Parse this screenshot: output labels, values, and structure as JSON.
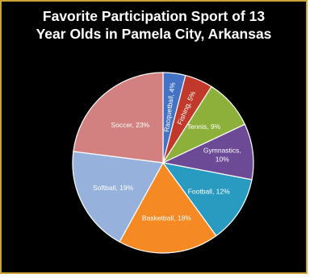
{
  "chart_data": {
    "type": "pie",
    "title": "Favorite Participation Sport of 13 Year Olds in Pamela City, Arkansas",
    "title_lines": [
      "Favorite Participation Sport of 13",
      "Year Olds in Pamela City, Arkansas"
    ],
    "slices": [
      {
        "label": "Racquetball",
        "value": 4,
        "text": "Racquetball, 4%",
        "color": "#4472c4"
      },
      {
        "label": "Fishing",
        "value": 5,
        "text": "Fishing, 5%",
        "color": "#c0392b"
      },
      {
        "label": "Tennis",
        "value": 9,
        "text": "Tennis, 9%",
        "color": "#8cb03a"
      },
      {
        "label": "Gymnastics",
        "value": 10,
        "text": "Gymnastics, 10%",
        "color": "#6c4a96"
      },
      {
        "label": "Football",
        "value": 12,
        "text": "Football, 12%",
        "color": "#2a9bc0"
      },
      {
        "label": "Basketball",
        "value": 18,
        "text": "Basketball, 18%",
        "color": "#f58a24"
      },
      {
        "label": "Softball",
        "value": 19,
        "text": "Softball, 19%",
        "color": "#96b2dc"
      },
      {
        "label": "Soccer",
        "value": 23,
        "text": "Soccer, 23%",
        "color": "#d38080"
      }
    ],
    "start_angle_deg": -90,
    "direction": "clockwise",
    "legend": "none",
    "data_labels": "inside"
  }
}
